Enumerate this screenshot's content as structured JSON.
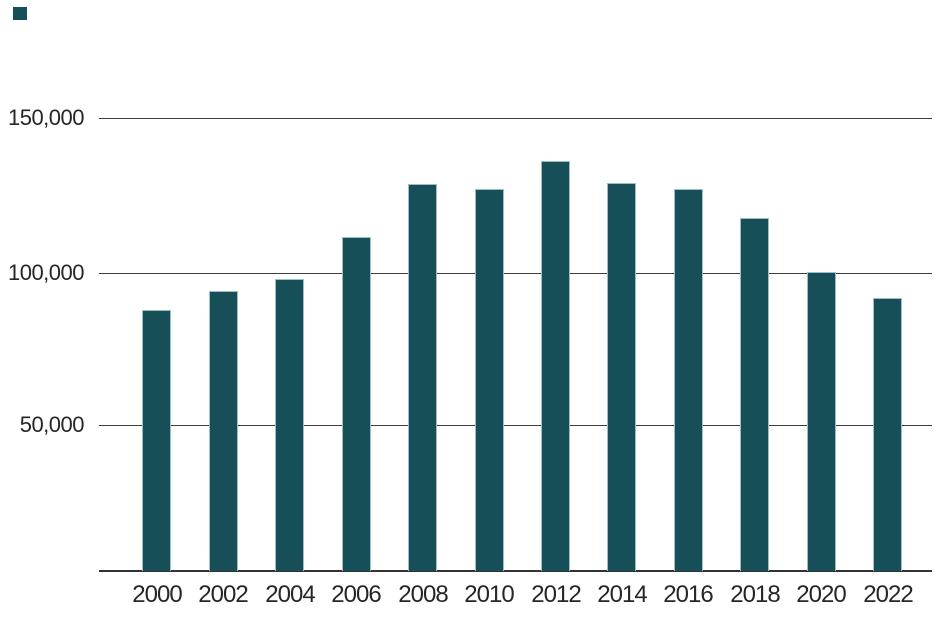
{
  "chart_data": {
    "type": "bar",
    "title": "",
    "xlabel": "",
    "ylabel": "",
    "categories": [
      "2000",
      "2002",
      "2004",
      "2006",
      "2008",
      "2010",
      "2012",
      "2014",
      "2016",
      "2018",
      "2020",
      "2022"
    ],
    "values": [
      87500,
      93800,
      98000,
      112100,
      129800,
      128200,
      137600,
      130200,
      128200,
      118600,
      100300,
      91600
    ],
    "ylim": [
      0,
      150000
    ],
    "yticks": [
      {
        "value": 150000,
        "label": "150,000"
      },
      {
        "value": 100000,
        "label": "100,000"
      },
      {
        "value": 50000,
        "label": "50,000"
      }
    ],
    "grid": true,
    "legend_position": "top-left"
  },
  "colors": {
    "bar_fill": "#174f58",
    "bar_edge": "#9dbec3",
    "gridline": "#3d3d3d",
    "baseline": "#333333",
    "axis_text": "#262626",
    "background": "#ffffff",
    "swatch": "#174f58"
  }
}
